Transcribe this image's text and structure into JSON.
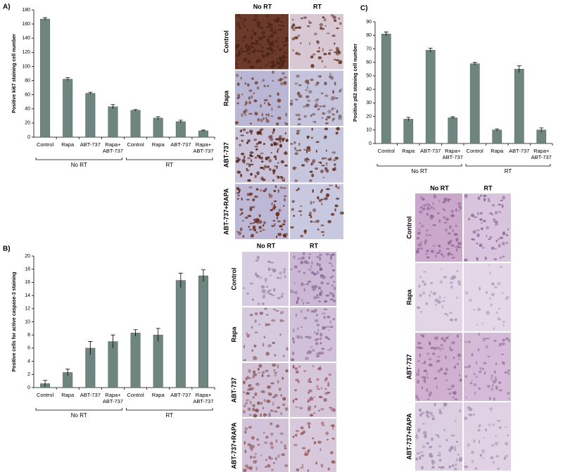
{
  "chart_data": [
    {
      "type": "bar",
      "panel": "A)",
      "y_label": "Positive ki67 staining cell number",
      "color": "#6e8580",
      "categories": [
        "Control",
        "Rapa",
        "ABT-737",
        "Rapa+ ABT-737",
        "Control",
        "Rapa",
        "ABT-737",
        "Rapa+ ABT-737"
      ],
      "groups": [
        "No RT",
        "RT"
      ],
      "values": [
        167,
        82,
        62,
        43,
        38,
        27,
        22,
        9
      ],
      "errors": [
        2,
        2,
        1.5,
        3,
        1,
        2,
        2,
        1
      ],
      "ylim": [
        0,
        180
      ],
      "yticks": [
        0,
        20,
        40,
        60,
        80,
        100,
        120,
        140,
        160,
        180
      ]
    },
    {
      "type": "bar",
      "panel": "B)",
      "y_label": "Positive cells for active caspase-3 staining",
      "color": "#6e8580",
      "categories": [
        "Control",
        "Rapa",
        "ABT-737",
        "Rapa+ ABT-737",
        "Control",
        "Rapa",
        "ABT-737",
        "Rapa+ ABT-737"
      ],
      "groups": [
        "No RT",
        "RT"
      ],
      "values": [
        0.6,
        2.3,
        6.0,
        7.0,
        8.3,
        8.0,
        16.3,
        17.0
      ],
      "errors": [
        0.5,
        0.5,
        1,
        1,
        0.5,
        1,
        1.1,
        0.9
      ],
      "ylim": [
        0,
        20
      ],
      "yticks": [
        0,
        2,
        4,
        6,
        8,
        10,
        12,
        14,
        16,
        18,
        20
      ]
    },
    {
      "type": "bar",
      "panel": "C)",
      "y_label": "Positive p62 staining cell number",
      "color": "#6e8580",
      "categories": [
        "Control",
        "Rapa",
        "ABT-737",
        "Rapa+ ABT-737",
        "Control",
        "Rapa",
        "ABT-737",
        "Rapa+ ABT-737"
      ],
      "groups": [
        "No RT",
        "RT"
      ],
      "values": [
        81,
        18,
        69,
        19,
        59,
        10,
        55,
        10
      ],
      "errors": [
        1.5,
        1.3,
        1.5,
        0.8,
        1,
        0.8,
        2.5,
        1.5
      ],
      "ylim": [
        0,
        90
      ],
      "yticks": [
        0,
        10,
        20,
        30,
        40,
        50,
        60,
        70,
        80,
        90
      ]
    }
  ],
  "image_grids": [
    {
      "columns": [
        "No RT",
        "RT"
      ],
      "rows": [
        "Control",
        "Rapa",
        "ABT-737",
        "ABT-737+RAPA"
      ]
    },
    {
      "columns": [
        "No RT",
        "RT"
      ],
      "rows": [
        "Control",
        "Rapa",
        "ABT-737",
        "ABT-737+RAPA"
      ]
    },
    {
      "columns": [
        "No RT",
        "RT"
      ],
      "rows": [
        "Control",
        "Rapa",
        "ABT-737",
        "ABT-737+RAPA"
      ]
    }
  ]
}
